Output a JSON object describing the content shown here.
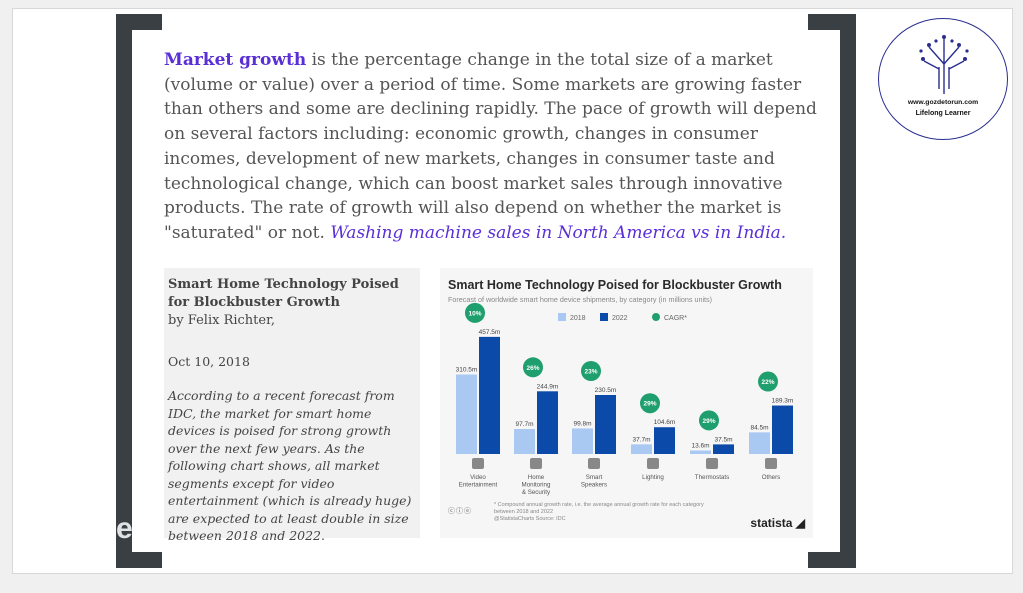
{
  "colors": {
    "accent": "#5a2fd6",
    "bar2018": "#a9c8f2",
    "bar2022": "#0b4aa8",
    "cagr": "#1f9e6e",
    "frame": "#3a3f44"
  },
  "paragraph": {
    "keyword": "Market growth",
    "text": " is the percentage change in the total size of a market (volume or value) over a period of time. Some markets are growing faster than others and some are declining rapidly. The pace of growth will depend on several factors including: economic growth, changes in consumer incomes, development of new markets, changes in consumer taste and technological change, which can boost market sales through innovative products. The rate of growth will also depend on whether the market is \"saturated\" or not. ",
    "link": "Washing machine sales in North America vs in India."
  },
  "article": {
    "title": "Smart Home Technology Poised for Blockbuster Growth",
    "byline": "by Felix Richter,",
    "date": "Oct 10, 2018",
    "body": "According to a recent forecast from IDC, the market for smart home devices is poised for strong growth over the next few years. As the following chart shows, all market segments except for video entertainment (which is already huge) are expected to at least double in size between 2018 and 2022."
  },
  "chart_data": {
    "type": "bar",
    "title": "Smart Home Technology Poised for Blockbuster Growth",
    "subtitle": "Forecast of worldwide smart home device shipments, by category (in millions units)",
    "legend": [
      "2018",
      "2022",
      "CAGR*"
    ],
    "categories": [
      "Video Entertainment",
      "Home Monitoring & Security",
      "Smart Speakers",
      "Lighting",
      "Thermostats",
      "Others"
    ],
    "series": [
      {
        "name": "2018",
        "values": [
          310.5,
          97.7,
          99.8,
          37.7,
          13.6,
          84.5
        ]
      },
      {
        "name": "2022",
        "values": [
          457.5,
          244.9,
          230.5,
          104.6,
          37.5,
          189.3
        ]
      }
    ],
    "value_labels_2018": [
      "310.5m",
      "97.7m",
      "99.8m",
      "37.7m",
      "13.6m",
      "84.5m"
    ],
    "value_labels_2022": [
      "457.5m",
      "244.9m",
      "230.5m",
      "104.6m",
      "37.5m",
      "189.3m"
    ],
    "cagr": [
      "10%",
      "26%",
      "23%",
      "29%",
      "29%",
      "22%"
    ],
    "ylim": [
      0,
      500
    ],
    "footnote": "* Compound annual growth rate, i.e. the average annual growth rate for each category between 2018 and 2022",
    "source": "@StatistaCharts  Source: IDC",
    "brand": "statista"
  },
  "watermark": "ezi",
  "logo": {
    "url": "www.gozdetorun.com",
    "tagline": "Lifelong Learner"
  }
}
